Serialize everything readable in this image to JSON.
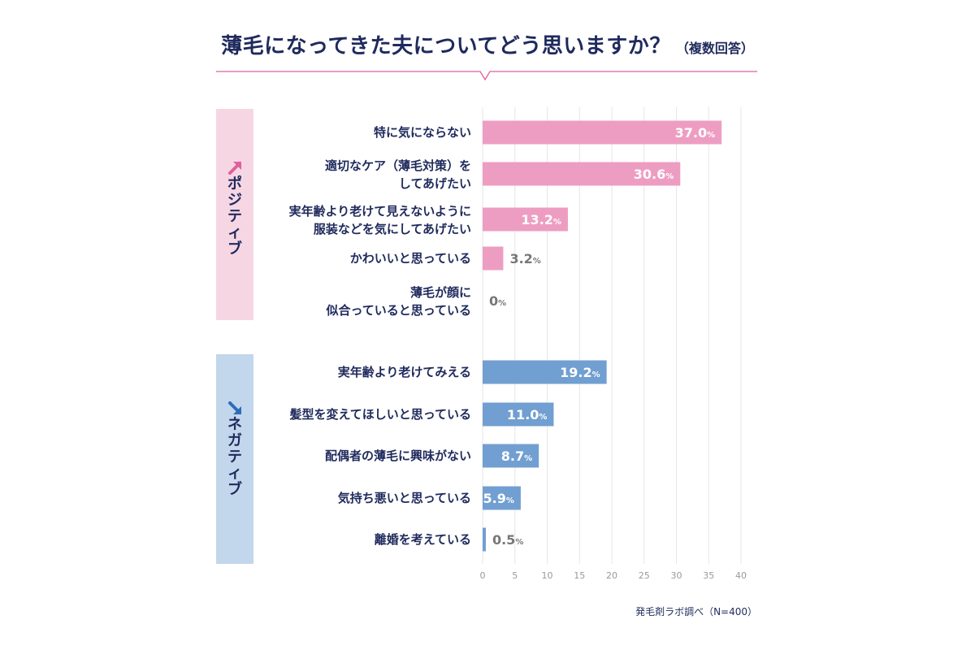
{
  "title": "薄毛になってきた夫についてどう思いますか？",
  "subtitle": "（複数回答）",
  "source": "発毛剤ラボ調べ（N=400）",
  "colors": {
    "positive_bar": "#ee9dc2",
    "positive_band": "#f7d6e4",
    "positive_arrow": "#e0609a",
    "negative_bar": "#729fd1",
    "negative_band": "#c2d6ec",
    "negative_arrow": "#2f6cb8",
    "text": "#1f2a5c",
    "outside_label": "#777777",
    "grid": "#e6e6e6",
    "axis_tick": "#999999"
  },
  "chart_data": {
    "type": "bar",
    "orientation": "horizontal",
    "xlim": [
      0,
      40
    ],
    "xticks": [
      0,
      5,
      10,
      15,
      20,
      25,
      30,
      35,
      40
    ],
    "value_suffix": "%",
    "grid": true,
    "groups": [
      {
        "name": "ポジティブ",
        "arrow_icon": "up-right-arrow",
        "items": [
          {
            "lines": [
              "特に気にならない"
            ],
            "value": 37.0,
            "label": "37.0"
          },
          {
            "lines": [
              "適切なケア（薄毛対策）を",
              "してあげたい"
            ],
            "value": 30.6,
            "label": "30.6"
          },
          {
            "lines": [
              "実年齢より老けて見えないように",
              "服装などを気にしてあげたい"
            ],
            "value": 13.2,
            "label": "13.2"
          },
          {
            "lines": [
              "かわいいと思っている"
            ],
            "value": 3.2,
            "label": "3.2"
          },
          {
            "lines": [
              "薄毛が顔に",
              "似合っていると思っている"
            ],
            "value": 0,
            "label": "0"
          }
        ]
      },
      {
        "name": "ネガティブ",
        "arrow_icon": "down-right-arrow",
        "items": [
          {
            "lines": [
              "実年齢より老けてみえる"
            ],
            "value": 19.2,
            "label": "19.2"
          },
          {
            "lines": [
              "髪型を変えてほしいと思っている"
            ],
            "value": 11.0,
            "label": "11.0"
          },
          {
            "lines": [
              "配偶者の薄毛に興味がない"
            ],
            "value": 8.7,
            "label": "8.7"
          },
          {
            "lines": [
              "気持ち悪いと思っている"
            ],
            "value": 5.9,
            "label": "5.9"
          },
          {
            "lines": [
              "離婚を考えている"
            ],
            "value": 0.5,
            "label": "0.5"
          }
        ]
      }
    ]
  }
}
